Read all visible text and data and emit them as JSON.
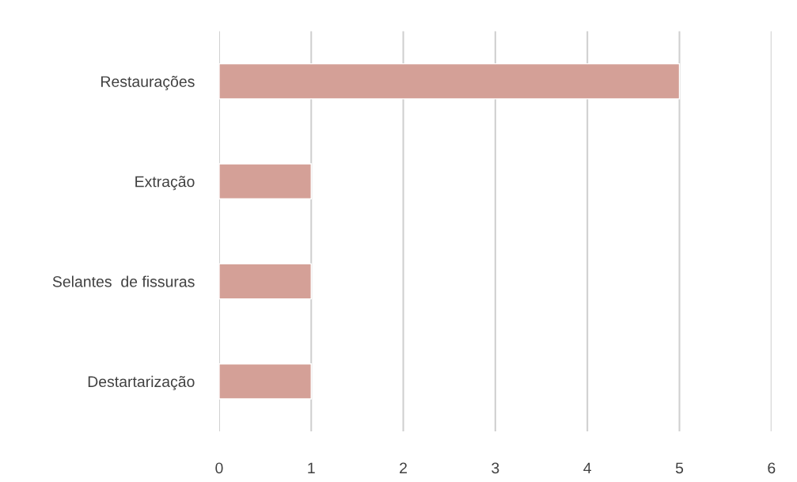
{
  "chart_data": {
    "type": "bar",
    "orientation": "horizontal",
    "categories": [
      "Restaurações",
      "Extração",
      "Selantes  de fissuras",
      "Destartarização"
    ],
    "values": [
      5,
      1,
      1,
      1
    ],
    "color": "#d4a097",
    "xlim": [
      0,
      6
    ],
    "xticks": [
      0,
      1,
      2,
      3,
      4,
      5,
      6
    ],
    "grid": "x"
  }
}
